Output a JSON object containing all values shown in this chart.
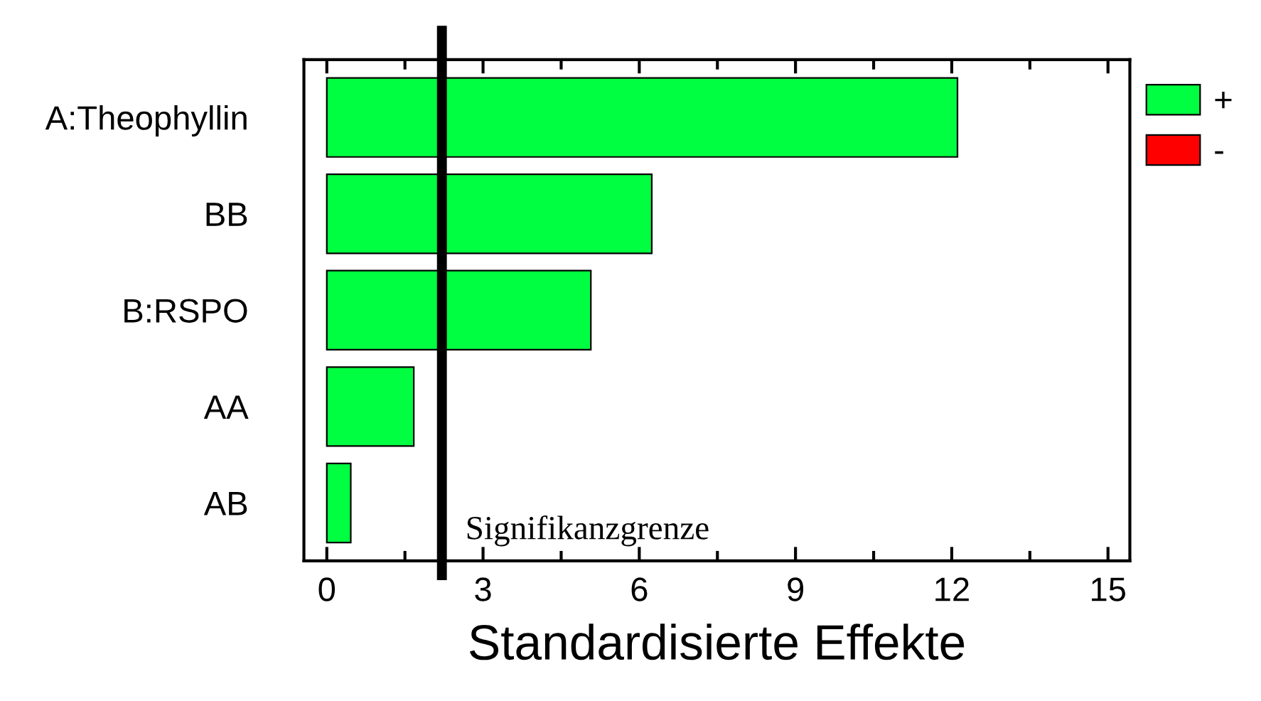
{
  "chart_data": {
    "type": "bar",
    "orientation": "horizontal",
    "xlabel": "Standardisierte Effekte",
    "categories": [
      "A:Theophyllin",
      "BB",
      "B:RSPO",
      "AA",
      "AB"
    ],
    "series": [
      {
        "name": "+",
        "color": "#00ff40",
        "values": [
          12.11,
          6.24,
          5.07,
          1.67,
          0.46
        ]
      },
      {
        "name": "-",
        "color": "#ff0000",
        "values": [
          null,
          null,
          null,
          null,
          null
        ]
      }
    ],
    "xlim": [
      -0.44,
      15.42
    ],
    "xticks": [
      0,
      3,
      6,
      9,
      12,
      15
    ],
    "ref_lines": [
      {
        "axis": "x",
        "value": 2.21,
        "label": "Signifikanzgrenze",
        "color": "#000000"
      }
    ],
    "grid": false,
    "legend": "right"
  }
}
